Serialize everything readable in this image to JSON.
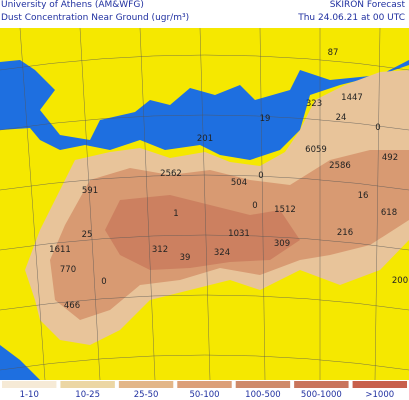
{
  "header": {
    "institution": "University of Athens (AM&WFG)",
    "product": "SKIRON Forecast",
    "field": "Dust Concentration Near Ground (ugr/m³)",
    "valid_time": "Thu 24.06.21 at 00 UTC"
  },
  "map": {
    "labels": [
      "87",
      "323",
      "1447",
      "24",
      "0",
      "19",
      "201",
      "6059",
      "2586",
      "492",
      "16",
      "618",
      "591",
      "2562",
      "504",
      "0",
      "1",
      "0",
      "1512",
      "25",
      "1031",
      "309",
      "216",
      "1611",
      "312",
      "39",
      "324",
      "770",
      "0",
      "466",
      "200"
    ]
  },
  "legend": {
    "items": [
      "1-10",
      "10-25",
      "25-50",
      "50-100",
      "100-500",
      "500-1000",
      ">1000"
    ]
  }
}
